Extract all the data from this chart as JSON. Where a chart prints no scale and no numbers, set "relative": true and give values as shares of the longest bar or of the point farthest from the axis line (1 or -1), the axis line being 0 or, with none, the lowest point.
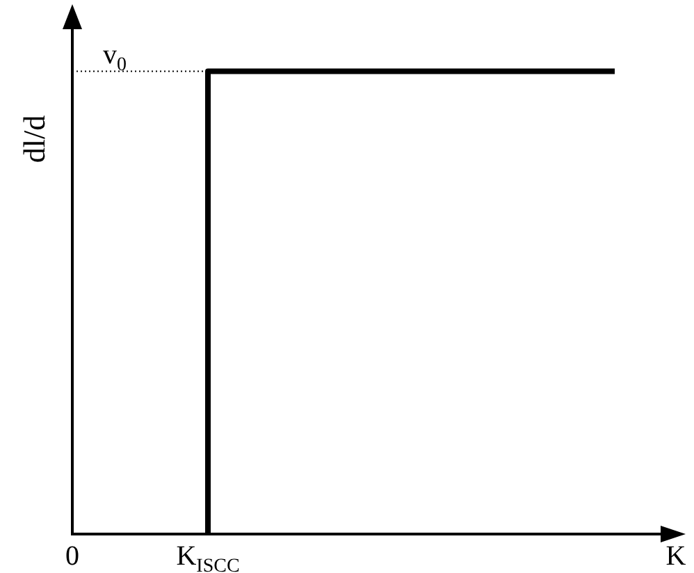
{
  "chart_data": {
    "type": "step",
    "relative": true,
    "xlabel": "K",
    "ylabel": "dl/d",
    "categories": [
      "0",
      "K$_{ISCC}$",
      null,
      null,
      null
    ],
    "values": [
      null,
      0,
      1,
      1,
      1
    ],
    "color": "#000000",
    "ref_lines": [
      {
        "axis": "y",
        "value": 1,
        "label": "v$_{0}$",
        "color": "#000000",
        "line_style": "dotted"
      }
    ],
    "marker": "none",
    "legend": false
  }
}
